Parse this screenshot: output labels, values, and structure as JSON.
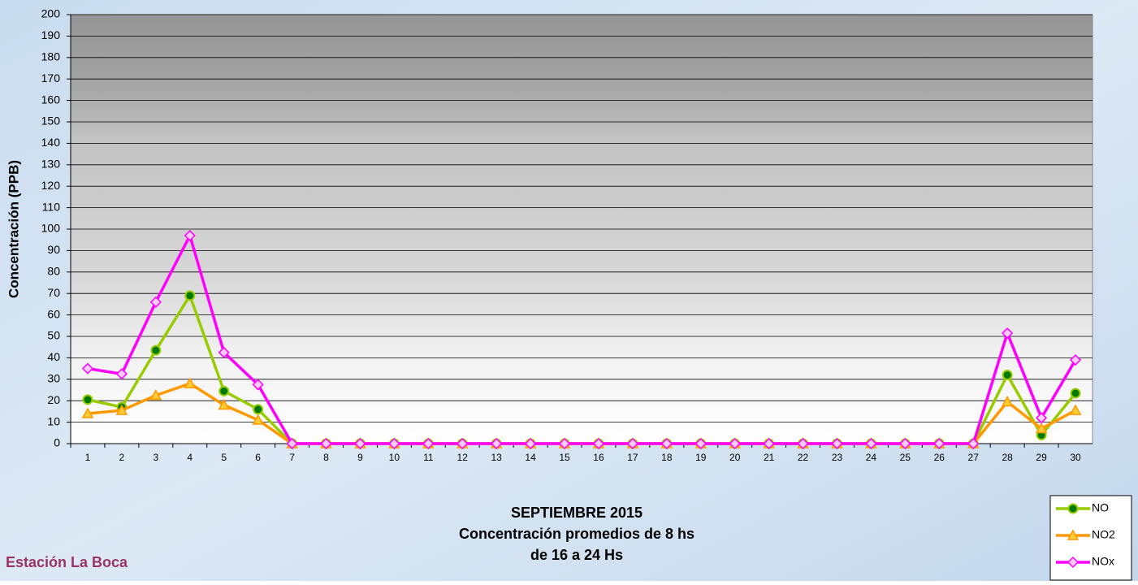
{
  "chart_data": {
    "type": "line",
    "title": "SEPTIEMBRE 2015",
    "subtitle": [
      "Concentración promedios de 8 hs",
      "de 16 a 24 Hs"
    ],
    "annotation": "Estación La Boca",
    "y_label": "Concentración  (PPB)",
    "categories": [
      "1",
      "2",
      "3",
      "4",
      "5",
      "6",
      "7",
      "8",
      "9",
      "10",
      "11",
      "12",
      "13",
      "14",
      "15",
      "16",
      "17",
      "18",
      "19",
      "20",
      "21",
      "22",
      "23",
      "24",
      "25",
      "26",
      "27",
      "28",
      "29",
      "30"
    ],
    "series": [
      {
        "name": "NO",
        "color": "#99cc00",
        "marker": "circle",
        "values": [
          20.5,
          17,
          43.5,
          69,
          24.5,
          16,
          0,
          0,
          0,
          0,
          0,
          0,
          0,
          0,
          0,
          0,
          0,
          0,
          0,
          0,
          0,
          0,
          0,
          0,
          0,
          0,
          0,
          32,
          4,
          23.5
        ]
      },
      {
        "name": "NO2",
        "color": "#ff9900",
        "marker": "triangle",
        "values": [
          14,
          15.5,
          22.5,
          28,
          18,
          11,
          0,
          0,
          0,
          0,
          0,
          0,
          0,
          0,
          0,
          0,
          0,
          0,
          0,
          0,
          0,
          0,
          0,
          0,
          0,
          0,
          0,
          19.5,
          7,
          15.5
        ]
      },
      {
        "name": "NOx",
        "color": "#ff00ff",
        "marker": "diamond",
        "values": [
          35,
          32.5,
          66,
          97,
          42.5,
          27.5,
          0,
          0,
          0,
          0,
          0,
          0,
          0,
          0,
          0,
          0,
          0,
          0,
          0,
          0,
          0,
          0,
          0,
          0,
          0,
          0,
          0,
          51.5,
          12,
          39
        ]
      }
    ],
    "ylim": [
      0,
      200
    ],
    "yticks": [
      0,
      10,
      20,
      30,
      40,
      50,
      60,
      70,
      80,
      90,
      100,
      110,
      120,
      130,
      140,
      150,
      160,
      170,
      180,
      190,
      200
    ],
    "grid": true,
    "legend": "bottom-right"
  }
}
